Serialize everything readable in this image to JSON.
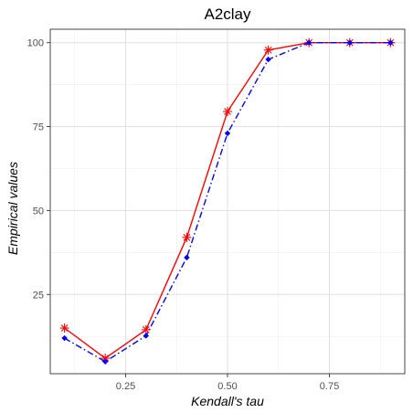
{
  "chart_data": {
    "type": "line",
    "title": "A2clay",
    "xlabel": "Kendall's tau",
    "ylabel": "Empirical values",
    "x": [
      0.1,
      0.2,
      0.3,
      0.4,
      0.5,
      0.6,
      0.7,
      0.8,
      0.9
    ],
    "xlim": [
      0.065,
      0.935
    ],
    "ylim": [
      1.4,
      104.0
    ],
    "x_ticks": [
      0.25,
      0.5,
      0.75
    ],
    "x_tick_labels": [
      "0.25",
      "0.50",
      "0.75"
    ],
    "x_minor_ticks": [
      0.125,
      0.375,
      0.625,
      0.875
    ],
    "y_ticks": [
      25,
      50,
      75,
      100
    ],
    "y_tick_labels": [
      "25",
      "50",
      "75",
      "100"
    ],
    "y_minor_ticks": [
      12.5,
      37.5,
      62.5,
      87.5
    ],
    "grid": true,
    "legend": "none",
    "series": [
      {
        "values": [
          15.0,
          6.0,
          14.5,
          42.0,
          79.5,
          97.8,
          100.0,
          100.0,
          100.0
        ],
        "color": "#ff0000",
        "line_style": "solid",
        "marker": "asterisk"
      },
      {
        "values": [
          12.0,
          5.0,
          12.7,
          36.0,
          73.0,
          95.0,
          100.0,
          100.0,
          100.0
        ],
        "color": "#0000ff",
        "line_style": "dashdot",
        "marker": "diamond"
      }
    ]
  }
}
